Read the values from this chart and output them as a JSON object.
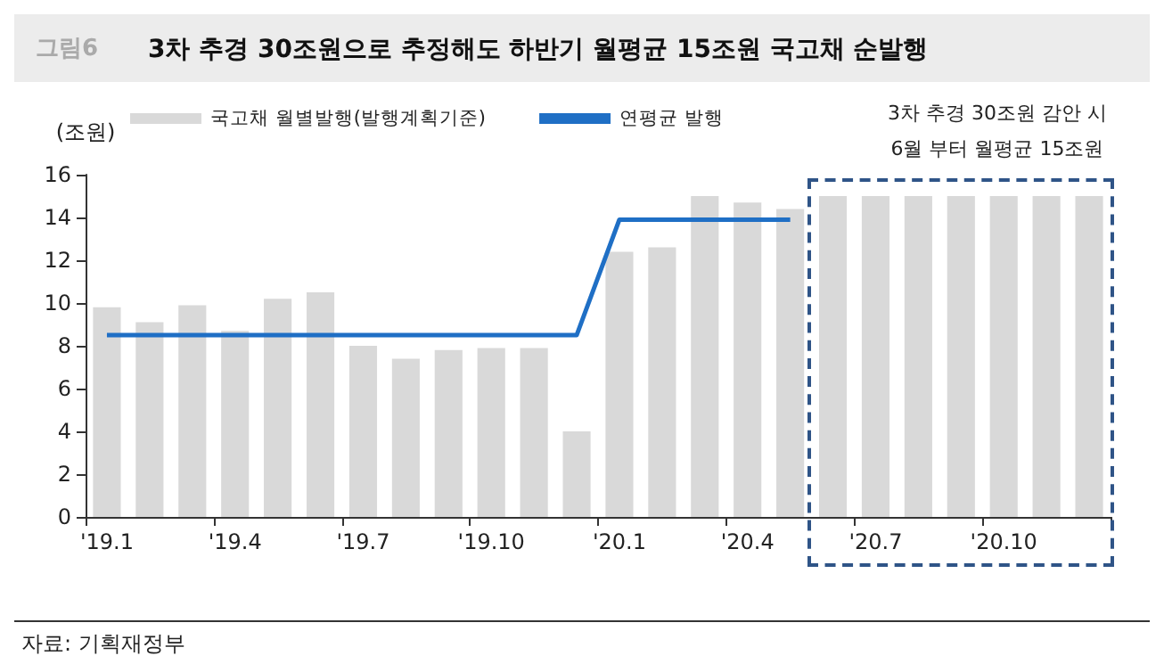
{
  "chart_data": {
    "type": "bar",
    "title": "3차 추경 30조원으로 추정해도 하반기 월평균 15조원 국고채 순발행",
    "ylabel": "(조원)",
    "categories": [
      "'19.1",
      null,
      null,
      "'19.4",
      null,
      null,
      "'19.7",
      null,
      null,
      "'19.10",
      null,
      null,
      "'20.1",
      null,
      null,
      "'20.4",
      null,
      null,
      "'20.7",
      null,
      null,
      "'20.10",
      null,
      null
    ],
    "series": [
      {
        "name": "국고채 월별발행(발행계획기준)",
        "color": "#d9d9d9",
        "values": [
          9.8,
          9.1,
          9.9,
          8.7,
          10.2,
          10.5,
          8.0,
          7.4,
          7.8,
          7.9,
          7.9,
          4.0,
          12.4,
          12.6,
          15.0,
          14.7,
          14.4,
          15.0,
          15.0,
          15.0,
          15.0,
          15.0,
          15.0,
          15.0
        ]
      },
      {
        "name": "연평균 발행",
        "type": "line",
        "color": "#1f6fc5",
        "values": [
          8.5,
          8.5,
          8.5,
          8.5,
          8.5,
          8.5,
          8.5,
          8.5,
          8.5,
          8.5,
          8.5,
          8.5,
          13.9,
          13.9,
          13.9,
          13.9,
          13.9,
          null,
          null,
          null,
          null,
          null,
          null,
          null
        ]
      }
    ],
    "ylim": [
      0,
      16
    ],
    "yticks": [
      0,
      2,
      4,
      6,
      8,
      10,
      12,
      14,
      16
    ],
    "grid": false,
    "legend": "top",
    "marker": "none",
    "line_style": "solid",
    "annotations": [
      "그림6",
      "3차 추경 30조원 감안 시\n6월 부터 월평균 15조원",
      "자료: 기획재정부"
    ]
  }
}
